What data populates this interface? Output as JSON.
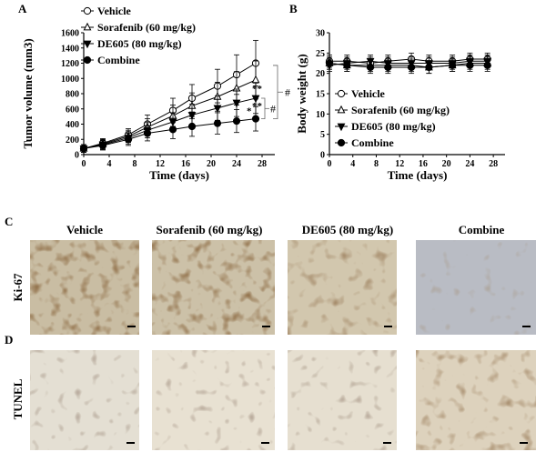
{
  "panel_labels": {
    "a": "A",
    "b": "B",
    "c": "C",
    "d": "D"
  },
  "row_labels": {
    "ki67": "Ki-67",
    "tunel": "TUNEL"
  },
  "column_labels": [
    "Vehicle",
    "Sorafenib (60 mg/kg)",
    "DE605 (80 mg/kg)",
    "Combine"
  ],
  "colors": {
    "line": "#000000",
    "background": "#ffffff"
  },
  "chart_data": [
    {
      "type": "line",
      "panel": "A",
      "xlabel": "Time (days)",
      "ylabel": "Tumor volume (mm3)",
      "xlim": [
        0,
        30
      ],
      "ylim": [
        0,
        1600
      ],
      "xticks": [
        0,
        4,
        8,
        12,
        16,
        20,
        24,
        28
      ],
      "yticks": [
        0,
        200,
        400,
        600,
        800,
        1000,
        1200,
        1400,
        1600
      ],
      "x": [
        0,
        3,
        7,
        10,
        14,
        17,
        21,
        24,
        27
      ],
      "series": [
        {
          "name": "Vehicle",
          "marker": "open-circle",
          "values": [
            80,
            150,
            260,
            400,
            580,
            740,
            900,
            1050,
            1200
          ],
          "errors": [
            50,
            60,
            80,
            120,
            160,
            180,
            220,
            260,
            300
          ]
        },
        {
          "name": "Sorafenib (60 mg/kg)",
          "marker": "open-triangle-up",
          "values": [
            80,
            140,
            240,
            360,
            510,
            640,
            760,
            870,
            980
          ],
          "errors": [
            50,
            60,
            80,
            110,
            140,
            170,
            190,
            220,
            250
          ]
        },
        {
          "name": "DE605 (80 mg/kg)",
          "marker": "filled-triangle-down",
          "values": [
            80,
            130,
            220,
            320,
            430,
            520,
            610,
            680,
            740
          ],
          "errors": [
            50,
            60,
            80,
            100,
            120,
            140,
            160,
            180,
            200
          ]
        },
        {
          "name": "Combine",
          "marker": "filled-circle",
          "values": [
            80,
            120,
            200,
            280,
            330,
            370,
            410,
            440,
            470
          ],
          "errors": [
            50,
            60,
            80,
            100,
            120,
            130,
            140,
            150,
            160
          ]
        }
      ],
      "annotations": [
        "*",
        "**",
        "**",
        "#",
        "#"
      ],
      "legend_position": "top-left"
    },
    {
      "type": "line",
      "panel": "B",
      "xlabel": "Time (days)",
      "ylabel": "Body weight (g)",
      "xlim": [
        0,
        30
      ],
      "ylim": [
        0,
        30
      ],
      "xticks": [
        0,
        4,
        8,
        12,
        16,
        20,
        24,
        28
      ],
      "yticks": [
        0,
        5,
        10,
        15,
        20,
        25,
        30
      ],
      "x": [
        0,
        3,
        7,
        10,
        14,
        17,
        21,
        24,
        27
      ],
      "series": [
        {
          "name": "Vehicle",
          "marker": "open-circle",
          "values": [
            23,
            23,
            22.5,
            23,
            23.5,
            23,
            23,
            23.5,
            23.5
          ],
          "errors": [
            1.5,
            1.5,
            1.5,
            1.5,
            1.5,
            1.5,
            1.5,
            1.5,
            1.5
          ]
        },
        {
          "name": "Sorafenib (60 mg/kg)",
          "marker": "open-triangle-up",
          "values": [
            22.5,
            22,
            22,
            22,
            22,
            21.5,
            22,
            22.5,
            22.5
          ],
          "errors": [
            1.5,
            1.5,
            1.5,
            1.5,
            1.5,
            1.5,
            1.5,
            1.5,
            1.5
          ]
        },
        {
          "name": "DE605 (80 mg/kg)",
          "marker": "filled-triangle-down",
          "values": [
            22,
            22.5,
            23,
            22.5,
            22.5,
            22.5,
            22.5,
            23,
            23
          ],
          "errors": [
            1.5,
            1.5,
            1.5,
            1.5,
            1.5,
            1.5,
            1.5,
            1.5,
            1.5
          ]
        },
        {
          "name": "Combine",
          "marker": "filled-circle",
          "values": [
            22.5,
            22,
            21.5,
            21.5,
            21.5,
            21.5,
            22,
            22,
            22
          ],
          "errors": [
            1.5,
            1.5,
            1.5,
            1.5,
            1.5,
            1.5,
            1.5,
            1.5,
            1.5
          ]
        }
      ],
      "legend_position": "bottom-left"
    }
  ]
}
